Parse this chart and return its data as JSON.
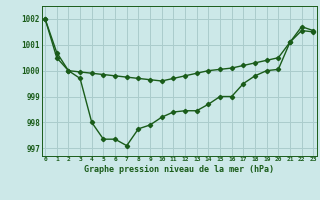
{
  "title": "Graphe pression niveau de la mer (hPa)",
  "background_color": "#cce8e8",
  "grid_color": "#aacccc",
  "line_color": "#1a5c1a",
  "line1": [
    1002.0,
    1000.7,
    1000.0,
    999.7,
    998.0,
    997.35,
    997.35,
    997.1,
    997.75,
    997.9,
    998.2,
    998.4,
    998.45,
    998.45,
    998.7,
    999.0,
    999.0,
    999.5,
    999.8,
    1000.0,
    1000.05,
    1001.1,
    1001.55,
    1001.5
  ],
  "line2": [
    1002.0,
    1000.5,
    1000.0,
    999.95,
    999.9,
    999.85,
    999.8,
    999.75,
    999.7,
    999.65,
    999.6,
    999.7,
    999.8,
    999.9,
    1000.0,
    1000.05,
    1000.1,
    1000.2,
    1000.3,
    1000.4,
    1000.5,
    1001.1,
    1001.7,
    1001.55
  ],
  "x": [
    0,
    1,
    2,
    3,
    4,
    5,
    6,
    7,
    8,
    9,
    10,
    11,
    12,
    13,
    14,
    15,
    16,
    17,
    18,
    19,
    20,
    21,
    22,
    23
  ],
  "xlim": [
    -0.3,
    23.3
  ],
  "ylim": [
    996.7,
    1002.5
  ],
  "yticks": [
    997,
    998,
    999,
    1000,
    1001,
    1002
  ],
  "xticks": [
    0,
    1,
    2,
    3,
    4,
    5,
    6,
    7,
    8,
    9,
    10,
    11,
    12,
    13,
    14,
    15,
    16,
    17,
    18,
    19,
    20,
    21,
    22,
    23
  ]
}
